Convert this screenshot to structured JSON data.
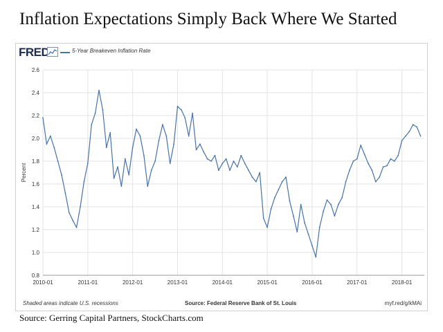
{
  "title": "Inflation Expectations Simply Back Where We Started",
  "source_caption": "Source: Gerring Capital Partners, StockCharts.com",
  "fred": {
    "logo": "FRED",
    "logo_icon": "chart-line-icon",
    "legend": "5-Year Breakeven Inflation Rate",
    "footer_left": "Shaded areas indicate U.S. recessions",
    "footer_center": "Source: Federal Reserve Bank of St. Louis",
    "footer_right": "myf.red/g/kMAi"
  },
  "colors": {
    "line": "#4572a7",
    "grid": "#e3e3e3",
    "logo": "#1a2a4a"
  },
  "chart_data": {
    "type": "line",
    "title": "",
    "xlabel": "",
    "ylabel": "Percent",
    "ylim": [
      0.8,
      2.6
    ],
    "yticks": [
      0.8,
      1.0,
      1.2,
      1.4,
      1.6,
      1.8,
      2.0,
      2.2,
      2.4,
      2.6
    ],
    "ytick_labels": [
      "0.8",
      "1.0",
      "1.2",
      "1.4",
      "1.6",
      "1.8",
      "2.0",
      "2.2",
      "2.4",
      "2.6"
    ],
    "xlim": [
      "2010-01",
      "2018-07"
    ],
    "xtick_labels": [
      "2010-01",
      "2011-01",
      "2012-01",
      "2013-01",
      "2014-01",
      "2015-01",
      "2016-01",
      "2017-01",
      "2018-01"
    ],
    "grid": true,
    "legend": "top-left",
    "series": [
      {
        "name": "5-Year Breakeven Inflation Rate",
        "x": [
          "2010-01",
          "2010-02",
          "2010-03",
          "2010-04",
          "2010-05",
          "2010-06",
          "2010-07",
          "2010-08",
          "2010-09",
          "2010-10",
          "2010-11",
          "2010-12",
          "2011-01",
          "2011-02",
          "2011-03",
          "2011-04",
          "2011-05",
          "2011-06",
          "2011-07",
          "2011-08",
          "2011-09",
          "2011-10",
          "2011-11",
          "2011-12",
          "2012-01",
          "2012-02",
          "2012-03",
          "2012-04",
          "2012-05",
          "2012-06",
          "2012-07",
          "2012-08",
          "2012-09",
          "2012-10",
          "2012-11",
          "2012-12",
          "2013-01",
          "2013-02",
          "2013-03",
          "2013-04",
          "2013-05",
          "2013-06",
          "2013-07",
          "2013-08",
          "2013-09",
          "2013-10",
          "2013-11",
          "2013-12",
          "2014-01",
          "2014-02",
          "2014-03",
          "2014-04",
          "2014-05",
          "2014-06",
          "2014-07",
          "2014-08",
          "2014-09",
          "2014-10",
          "2014-11",
          "2014-12",
          "2015-01",
          "2015-02",
          "2015-03",
          "2015-04",
          "2015-05",
          "2015-06",
          "2015-07",
          "2015-08",
          "2015-09",
          "2015-10",
          "2015-11",
          "2015-12",
          "2016-01",
          "2016-02",
          "2016-03",
          "2016-04",
          "2016-05",
          "2016-06",
          "2016-07",
          "2016-08",
          "2016-09",
          "2016-10",
          "2016-11",
          "2016-12",
          "2017-01",
          "2017-02",
          "2017-03",
          "2017-04",
          "2017-05",
          "2017-06",
          "2017-07",
          "2017-08",
          "2017-09",
          "2017-10",
          "2017-11",
          "2017-12",
          "2018-01",
          "2018-02",
          "2018-03",
          "2018-04",
          "2018-05",
          "2018-06"
        ],
        "values": [
          2.18,
          1.95,
          2.02,
          1.92,
          1.8,
          1.68,
          1.52,
          1.35,
          1.28,
          1.22,
          1.4,
          1.62,
          1.78,
          2.12,
          2.22,
          2.42,
          2.25,
          1.92,
          2.05,
          1.65,
          1.75,
          1.58,
          1.82,
          1.68,
          1.92,
          2.08,
          2.02,
          1.85,
          1.58,
          1.72,
          1.8,
          1.98,
          2.12,
          2.02,
          1.78,
          1.95,
          2.28,
          2.25,
          2.18,
          2.02,
          2.22,
          1.9,
          1.95,
          1.88,
          1.82,
          1.8,
          1.85,
          1.72,
          1.78,
          1.82,
          1.72,
          1.8,
          1.75,
          1.85,
          1.78,
          1.72,
          1.66,
          1.62,
          1.7,
          1.3,
          1.22,
          1.38,
          1.48,
          1.55,
          1.62,
          1.66,
          1.45,
          1.32,
          1.18,
          1.42,
          1.26,
          1.16,
          1.06,
          0.96,
          1.22,
          1.36,
          1.46,
          1.42,
          1.32,
          1.42,
          1.48,
          1.62,
          1.72,
          1.8,
          1.82,
          1.94,
          1.86,
          1.78,
          1.72,
          1.62,
          1.66,
          1.75,
          1.76,
          1.82,
          1.8,
          1.85,
          1.98,
          2.02,
          2.06,
          2.12,
          2.1,
          2.02
        ]
      }
    ]
  }
}
